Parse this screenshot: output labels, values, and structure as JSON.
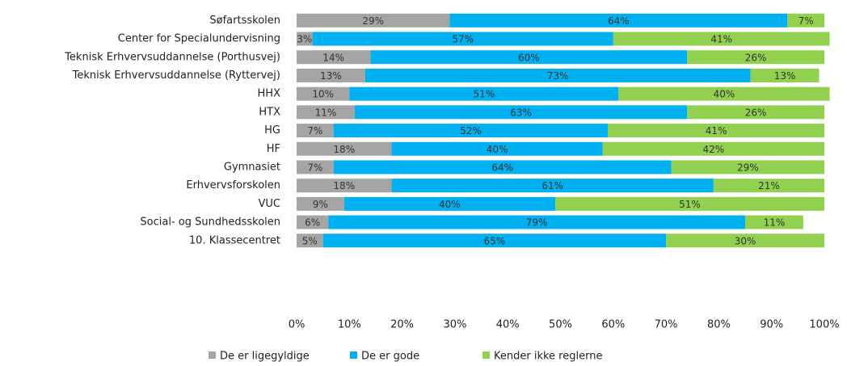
{
  "chart_data": {
    "type": "stacked_barh",
    "categories": [
      "Søfartsskolen",
      "Center for Specialundervisning",
      "Teknisk Erhvervsuddannelse (Porthusvej)",
      "Teknisk Erhvervsuddannelse (Ryttervej)",
      "HHX",
      "HTX",
      "HG",
      "HF",
      "Gymnasiet",
      "Erhvervsforskolen",
      "VUC",
      "Social- og Sundhedsskolen",
      "10. Klassecentret"
    ],
    "series": [
      {
        "name": "De er ligegyldige",
        "color": "#a5a5a5",
        "values": [
          29,
          3,
          14,
          13,
          10,
          11,
          7,
          18,
          7,
          18,
          9,
          6,
          5
        ],
        "value_labels": [
          "29%",
          "3%",
          "14%",
          "13%",
          "10%",
          "11%",
          "7%",
          "18%",
          "7%",
          "18%",
          "9%",
          "6%",
          "5%"
        ]
      },
      {
        "name": "De er gode",
        "color": "#00b0f0",
        "values": [
          64,
          57,
          60,
          73,
          51,
          63,
          52,
          40,
          64,
          61,
          40,
          79,
          65
        ],
        "value_labels": [
          "64%",
          "57%",
          "60%",
          "73%",
          "51%",
          "63%",
          "52%",
          "40%",
          "64%",
          "61%",
          "40%",
          "79%",
          "65%"
        ]
      },
      {
        "name": "Kender ikke reglerne",
        "color": "#92d050",
        "values": [
          7,
          41,
          26,
          13,
          40,
          26,
          41,
          42,
          29,
          21,
          51,
          11,
          30
        ],
        "value_labels": [
          "7%",
          "41%",
          "26%",
          "13%",
          "40%",
          "26%",
          "41%",
          "42%",
          "29%",
          "21%",
          "51%",
          "11%",
          "30%"
        ]
      }
    ],
    "xlim": [
      0,
      100
    ],
    "xticks": [
      {
        "value": 0,
        "label": "0%"
      },
      {
        "value": 10,
        "label": "10%"
      },
      {
        "value": 20,
        "label": "20%"
      },
      {
        "value": 30,
        "label": "30%"
      },
      {
        "value": 40,
        "label": "40%"
      },
      {
        "value": 50,
        "label": "50%"
      },
      {
        "value": 60,
        "label": "60%"
      },
      {
        "value": 70,
        "label": "70%"
      },
      {
        "value": 80,
        "label": "80%"
      },
      {
        "value": 90,
        "label": "90%"
      },
      {
        "value": 100,
        "label": "100%"
      }
    ],
    "legend": "bottom"
  }
}
